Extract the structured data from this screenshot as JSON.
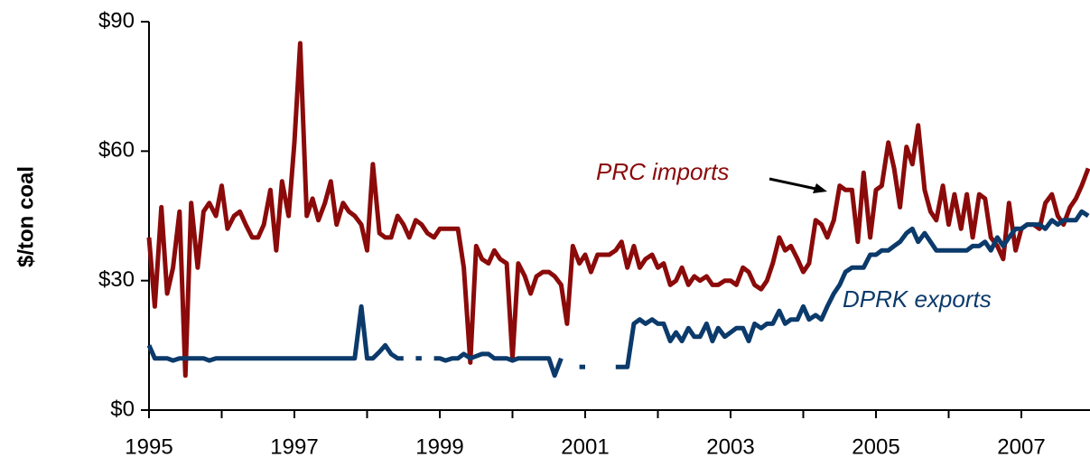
{
  "chart_data": {
    "type": "line",
    "y_label": "$/ton coal",
    "annotations": [
      "PRC imports",
      "DPRK exports"
    ],
    "xlim": [
      1995,
      2008
    ],
    "xticks": [
      1995,
      1997,
      1999,
      2001,
      2003,
      2005,
      2007
    ],
    "xminorticks": [
      1996,
      1998,
      2000,
      2002,
      2004,
      2006
    ],
    "ylim": [
      0,
      90
    ],
    "yticks": [
      {
        "value": 0,
        "label": "$0"
      },
      {
        "value": 30,
        "label": "$30"
      },
      {
        "value": 60,
        "label": "$60"
      },
      {
        "value": 90,
        "label": "$90"
      }
    ],
    "grid": false,
    "x": [
      1995.0,
      1995.08,
      1995.17,
      1995.25,
      1995.33,
      1995.42,
      1995.5,
      1995.58,
      1995.67,
      1995.75,
      1995.83,
      1995.92,
      1996.0,
      1996.08,
      1996.17,
      1996.25,
      1996.33,
      1996.42,
      1996.5,
      1996.58,
      1996.67,
      1996.75,
      1996.83,
      1996.92,
      1997.0,
      1997.08,
      1997.17,
      1997.25,
      1997.33,
      1997.42,
      1997.5,
      1997.58,
      1997.67,
      1997.75,
      1997.83,
      1997.92,
      1998.0,
      1998.08,
      1998.17,
      1998.25,
      1998.33,
      1998.42,
      1998.5,
      1998.58,
      1998.67,
      1998.75,
      1998.83,
      1998.92,
      1999.0,
      1999.08,
      1999.17,
      1999.25,
      1999.33,
      1999.42,
      1999.5,
      1999.58,
      1999.67,
      1999.75,
      1999.83,
      1999.92,
      2000.0,
      2000.08,
      2000.17,
      2000.25,
      2000.33,
      2000.42,
      2000.5,
      2000.58,
      2000.67,
      2000.75,
      2000.83,
      2000.92,
      2001.0,
      2001.08,
      2001.17,
      2001.25,
      2001.33,
      2001.42,
      2001.5,
      2001.58,
      2001.67,
      2001.75,
      2001.83,
      2001.92,
      2002.0,
      2002.08,
      2002.17,
      2002.25,
      2002.33,
      2002.42,
      2002.5,
      2002.58,
      2002.67,
      2002.75,
      2002.83,
      2002.92,
      2003.0,
      2003.08,
      2003.17,
      2003.25,
      2003.33,
      2003.42,
      2003.5,
      2003.58,
      2003.67,
      2003.75,
      2003.83,
      2003.92,
      2004.0,
      2004.08,
      2004.17,
      2004.25,
      2004.33,
      2004.42,
      2004.5,
      2004.58,
      2004.67,
      2004.75,
      2004.83,
      2004.92,
      2005.0,
      2005.08,
      2005.17,
      2005.25,
      2005.33,
      2005.42,
      2005.5,
      2005.58,
      2005.67,
      2005.75,
      2005.83,
      2005.92,
      2006.0,
      2006.08,
      2006.17,
      2006.25,
      2006.33,
      2006.42,
      2006.5,
      2006.58,
      2006.67,
      2006.75,
      2006.83,
      2006.92,
      2007.0,
      2007.08,
      2007.17,
      2007.25,
      2007.33,
      2007.42,
      2007.5,
      2007.58,
      2007.67,
      2007.75,
      2007.83,
      2007.92
    ],
    "series": [
      {
        "name": "PRC imports",
        "color": "#8b0a0a",
        "values": [
          40,
          24,
          47,
          27,
          33,
          46,
          8,
          48,
          33,
          46,
          48,
          45,
          52,
          42,
          45,
          46,
          43,
          40,
          40,
          43,
          51,
          37,
          53,
          45,
          62,
          85,
          45,
          49,
          44,
          48,
          53,
          43,
          48,
          46,
          45,
          43,
          37,
          57,
          41,
          40,
          40,
          45,
          43,
          40,
          44,
          43,
          41,
          40,
          42,
          42,
          42,
          42,
          33,
          11,
          38,
          35,
          34,
          37,
          35,
          34,
          12,
          34,
          31,
          27,
          31,
          32,
          32,
          31,
          29,
          20,
          38,
          34,
          36,
          32,
          36,
          36,
          36,
          37,
          39,
          33,
          38,
          33,
          35,
          36,
          33,
          34,
          29,
          30,
          33,
          29,
          31,
          30,
          31,
          29,
          29,
          30,
          30,
          29,
          33,
          32,
          29,
          28,
          30,
          34,
          40,
          37,
          38,
          35,
          32,
          34,
          44,
          43,
          40,
          44,
          52,
          51,
          51,
          39,
          55,
          40,
          51,
          52,
          62,
          56,
          47,
          61,
          57,
          66,
          51,
          46,
          44,
          52,
          43,
          50,
          42,
          50,
          40,
          50,
          49,
          40,
          38,
          35,
          48,
          37,
          42,
          43,
          43,
          42,
          48,
          50,
          45,
          43,
          47,
          49,
          52,
          56
        ]
      },
      {
        "name": "DPRK exports",
        "color": "#0b3a6b",
        "values": [
          15,
          12,
          12,
          12,
          11.5,
          12,
          12,
          12,
          12,
          12,
          11.5,
          12,
          12,
          12,
          12,
          12,
          12,
          12,
          12,
          12,
          12,
          12,
          12,
          12,
          12,
          12,
          12,
          12,
          12,
          12,
          12,
          12,
          12,
          12,
          12,
          24,
          12,
          12,
          13.5,
          15,
          13,
          12,
          12,
          null,
          12,
          12,
          null,
          12,
          12,
          11.5,
          12,
          12,
          13,
          12,
          12.5,
          13,
          13,
          12,
          12,
          12,
          11.5,
          12,
          12,
          12,
          12,
          12,
          12,
          8,
          12,
          null,
          null,
          10,
          10,
          null,
          null,
          null,
          null,
          10,
          10,
          10,
          20,
          21,
          20,
          21,
          20,
          20,
          16,
          18,
          16,
          19,
          17,
          17,
          20,
          16,
          19,
          17,
          18,
          19,
          19,
          16,
          20,
          19,
          20,
          20,
          23,
          20,
          21,
          21,
          24,
          21,
          22,
          21,
          24,
          27,
          29,
          32,
          33,
          33,
          33,
          36,
          36,
          37,
          37,
          38,
          39,
          41,
          42,
          39,
          41,
          39,
          37,
          37,
          37,
          37,
          37,
          37,
          38,
          38,
          39,
          37,
          40,
          38,
          40,
          42,
          42,
          43,
          43,
          43,
          42,
          44,
          43,
          44,
          44,
          44,
          46,
          45
        ]
      }
    ]
  }
}
